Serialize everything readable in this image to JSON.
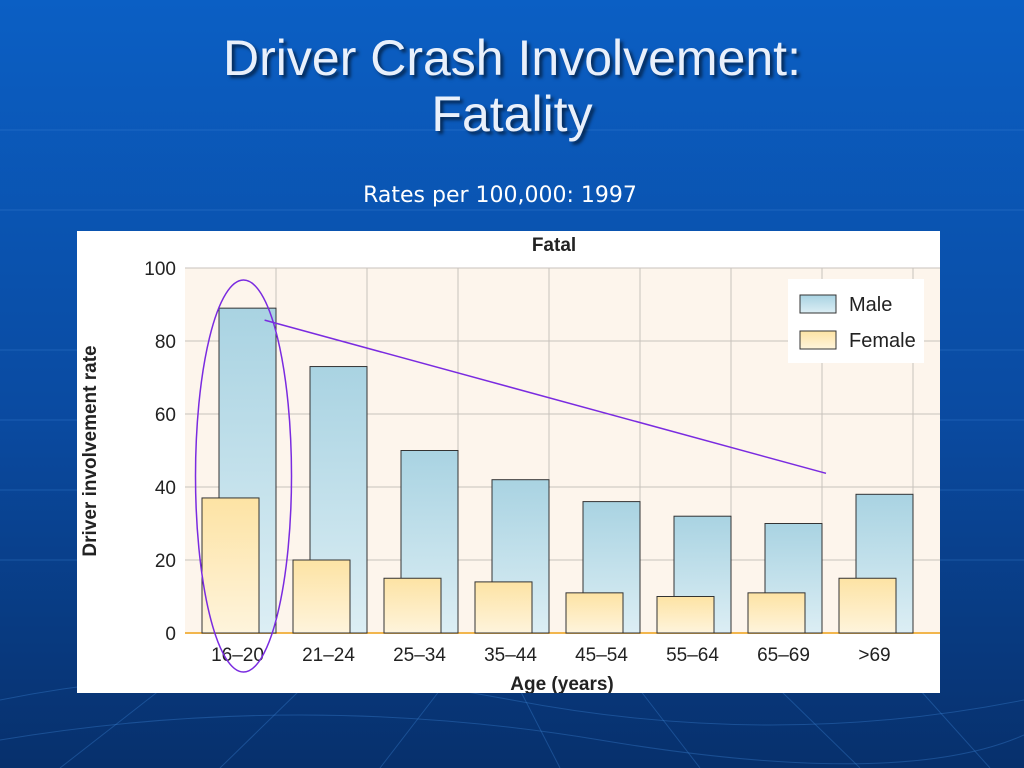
{
  "slide": {
    "title_line1": "Driver Crash Involvement:",
    "title_line2": "Fatality",
    "subtitle": "Rates per 100,000: 1997"
  },
  "colors": {
    "background": "#0a4fa8",
    "plot_background": "#fdf5ec",
    "male": "#bfe0ea",
    "female": "#fde9b6",
    "annotation": "#7a2be0"
  },
  "chart_data": {
    "type": "bar",
    "title": "Fatal",
    "xlabel": "Age (years)",
    "ylabel": "Driver involvement rate",
    "categories": [
      "16–20",
      "21–24",
      "25–34",
      "35–44",
      "45–54",
      "55–64",
      "65–69",
      ">69"
    ],
    "series": [
      {
        "name": "Male",
        "values": [
          89,
          73,
          50,
          42,
          36,
          32,
          30,
          38
        ]
      },
      {
        "name": "Female",
        "values": [
          37,
          20,
          15,
          14,
          11,
          10,
          11,
          15
        ]
      }
    ],
    "ylim": [
      0,
      100
    ],
    "yticks": [
      0,
      20,
      40,
      60,
      80,
      100
    ],
    "grid": true,
    "legend": "top-right",
    "annotations": [
      {
        "type": "ellipse",
        "category": "16–20"
      },
      {
        "type": "line",
        "from_category": "16–20",
        "to_category": ">69"
      }
    ]
  }
}
